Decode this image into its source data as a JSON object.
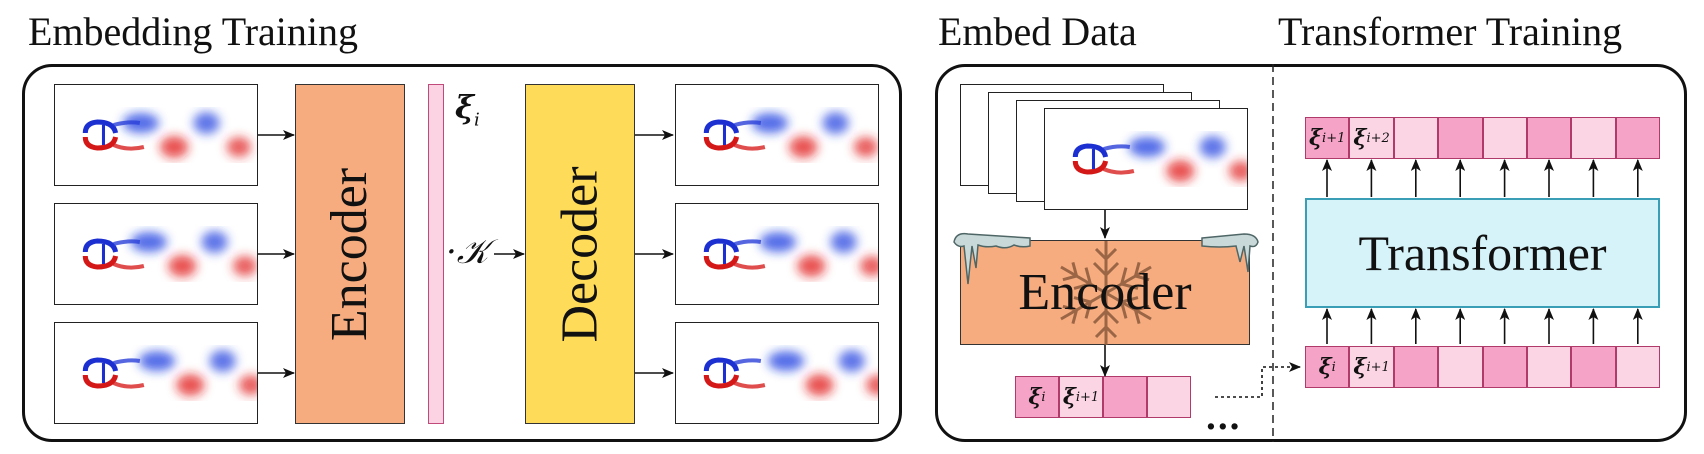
{
  "titles": {
    "embedding_training": "Embedding Training",
    "embed_data": "Embed Data",
    "transformer_training": "Transformer Training"
  },
  "blocks": {
    "encoder_label": "Encoder",
    "decoder_label": "Decoder",
    "frozen_encoder_label": "Encoder",
    "transformer_label": "Transformer"
  },
  "symbols": {
    "xi_i": "ξ",
    "xi_i_sub": "i",
    "koopman": "·𝒦",
    "ellipsis": "..."
  },
  "embed_sequence": [
    {
      "base": "ξ",
      "sub": "i"
    },
    {
      "base": "ξ",
      "sub": "i+1"
    },
    {
      "base": "",
      "sub": ""
    },
    {
      "base": "",
      "sub": ""
    }
  ],
  "transformer_inputs": [
    {
      "base": "ξ",
      "sub": "i"
    },
    {
      "base": "ξ",
      "sub": "i+1"
    },
    {
      "base": "",
      "sub": ""
    },
    {
      "base": "",
      "sub": ""
    },
    {
      "base": "",
      "sub": ""
    },
    {
      "base": "",
      "sub": ""
    },
    {
      "base": "",
      "sub": ""
    },
    {
      "base": "",
      "sub": ""
    }
  ],
  "transformer_outputs": [
    {
      "base": "ξ",
      "sub": "i+1"
    },
    {
      "base": "ξ",
      "sub": "i+2"
    },
    {
      "base": "",
      "sub": ""
    },
    {
      "base": "",
      "sub": ""
    },
    {
      "base": "",
      "sub": ""
    },
    {
      "base": "",
      "sub": ""
    },
    {
      "base": "",
      "sub": ""
    },
    {
      "base": "",
      "sub": ""
    }
  ],
  "colors": {
    "encoder": "#f6ac7f",
    "decoder": "#fedc5a",
    "transformer": "#d6f3fa",
    "transformer_border": "#3a9fb6",
    "embedding_bar": "#fbd3e2",
    "cell_dark": "#f5a3c6",
    "cell_light": "#fcd5e5",
    "ice": "#c9d9d9",
    "snowflake": "#8b5a3c"
  }
}
